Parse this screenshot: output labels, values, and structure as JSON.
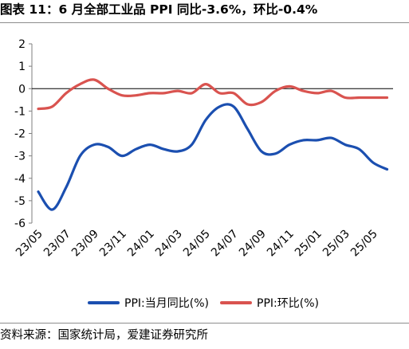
{
  "header": {
    "title": "图表 11：6 月全部工业品 PPI 同比-3.6%，环比-0.4%"
  },
  "footer": {
    "source": "资料来源：国家统计局，爱建证券研究所"
  },
  "colors": {
    "yoy": "#1b4fb0",
    "mom": "#d9534f",
    "zero_line": "#000000",
    "axis": "#7f7f7f"
  },
  "chart_data": {
    "type": "line",
    "title": "",
    "xlabel": "",
    "ylabel": "",
    "ylim": [
      -6,
      2
    ],
    "yticks": [
      2,
      1,
      0,
      -1,
      -2,
      -3,
      -4,
      -5,
      -6
    ],
    "grid": false,
    "legend_position": "bottom",
    "x": [
      "23/05",
      "23/06",
      "23/07",
      "23/08",
      "23/09",
      "23/10",
      "23/11",
      "23/12",
      "24/01",
      "24/02",
      "24/03",
      "24/04",
      "24/05",
      "24/06",
      "24/07",
      "24/08",
      "24/09",
      "24/10",
      "24/11",
      "24/12",
      "25/01",
      "25/02",
      "25/03",
      "25/04",
      "25/05",
      "25/06"
    ],
    "xtick_labels": [
      "23/05",
      "23/07",
      "23/09",
      "23/11",
      "24/01",
      "24/03",
      "24/05",
      "24/07",
      "24/09",
      "24/11",
      "25/01",
      "25/03",
      "25/05"
    ],
    "series": [
      {
        "name": "PPI:当月同比(%)",
        "color_key": "yoy",
        "values": [
          -4.6,
          -5.4,
          -4.4,
          -3.0,
          -2.5,
          -2.6,
          -3.0,
          -2.7,
          -2.5,
          -2.7,
          -2.8,
          -2.5,
          -1.4,
          -0.8,
          -0.8,
          -1.8,
          -2.8,
          -2.9,
          -2.5,
          -2.3,
          -2.3,
          -2.2,
          -2.5,
          -2.7,
          -3.3,
          -3.6
        ]
      },
      {
        "name": "PPI:环比(%)",
        "color_key": "mom",
        "values": [
          -0.9,
          -0.8,
          -0.2,
          0.2,
          0.4,
          0.0,
          -0.3,
          -0.3,
          -0.2,
          -0.2,
          -0.1,
          -0.2,
          0.2,
          -0.2,
          -0.2,
          -0.7,
          -0.6,
          -0.1,
          0.1,
          -0.1,
          -0.2,
          -0.1,
          -0.4,
          -0.4,
          -0.4,
          -0.4
        ]
      }
    ]
  }
}
